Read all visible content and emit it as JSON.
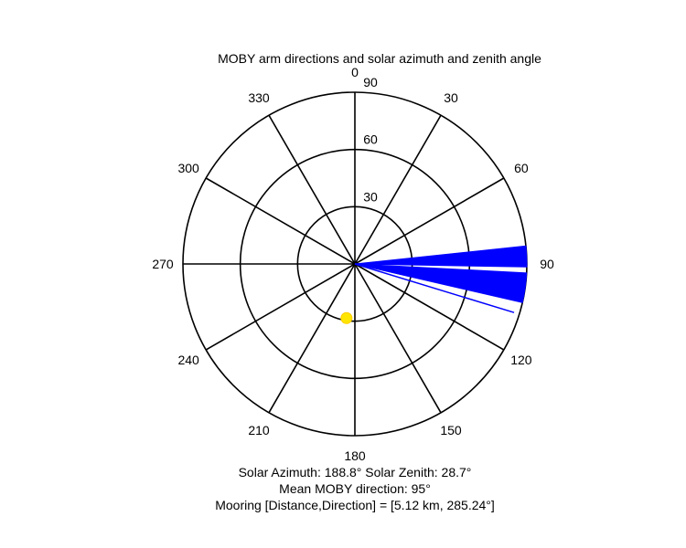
{
  "chart_data": {
    "type": "polar",
    "title": "MOBY arm directions and solar azimuth and zenith angle",
    "angle_convention": "clockwise from north (0 at top)",
    "azimuth_tick_labels": [
      "0",
      "30",
      "60",
      "90",
      "120",
      "150",
      "180",
      "210",
      "240",
      "270",
      "300",
      "330"
    ],
    "azimuth_ticks": [
      0,
      30,
      60,
      90,
      120,
      150,
      180,
      210,
      240,
      270,
      300,
      330
    ],
    "radial_tick_labels": [
      "30",
      "60",
      "90"
    ],
    "radial_ticks": [
      30,
      60,
      90
    ],
    "radial_range": [
      0,
      90
    ],
    "grid": true,
    "series": [
      {
        "kind": "arm-directions",
        "color": "#0000ff",
        "fill_ranges_deg": [
          [
            84,
            91
          ],
          [
            93,
            103
          ]
        ],
        "lines_deg": [
          95,
          98,
          107
        ]
      },
      {
        "kind": "sun",
        "color": "#ffe600",
        "azimuth": 188.8,
        "zenith": 28.7
      }
    ],
    "captions": [
      "Solar Azimuth: 188.8°   Solar Zenith: 28.7°",
      "Mean MOBY direction: 95°",
      "Mooring [Distance,Direction] = [5.12 km, 285.24°]"
    ]
  }
}
